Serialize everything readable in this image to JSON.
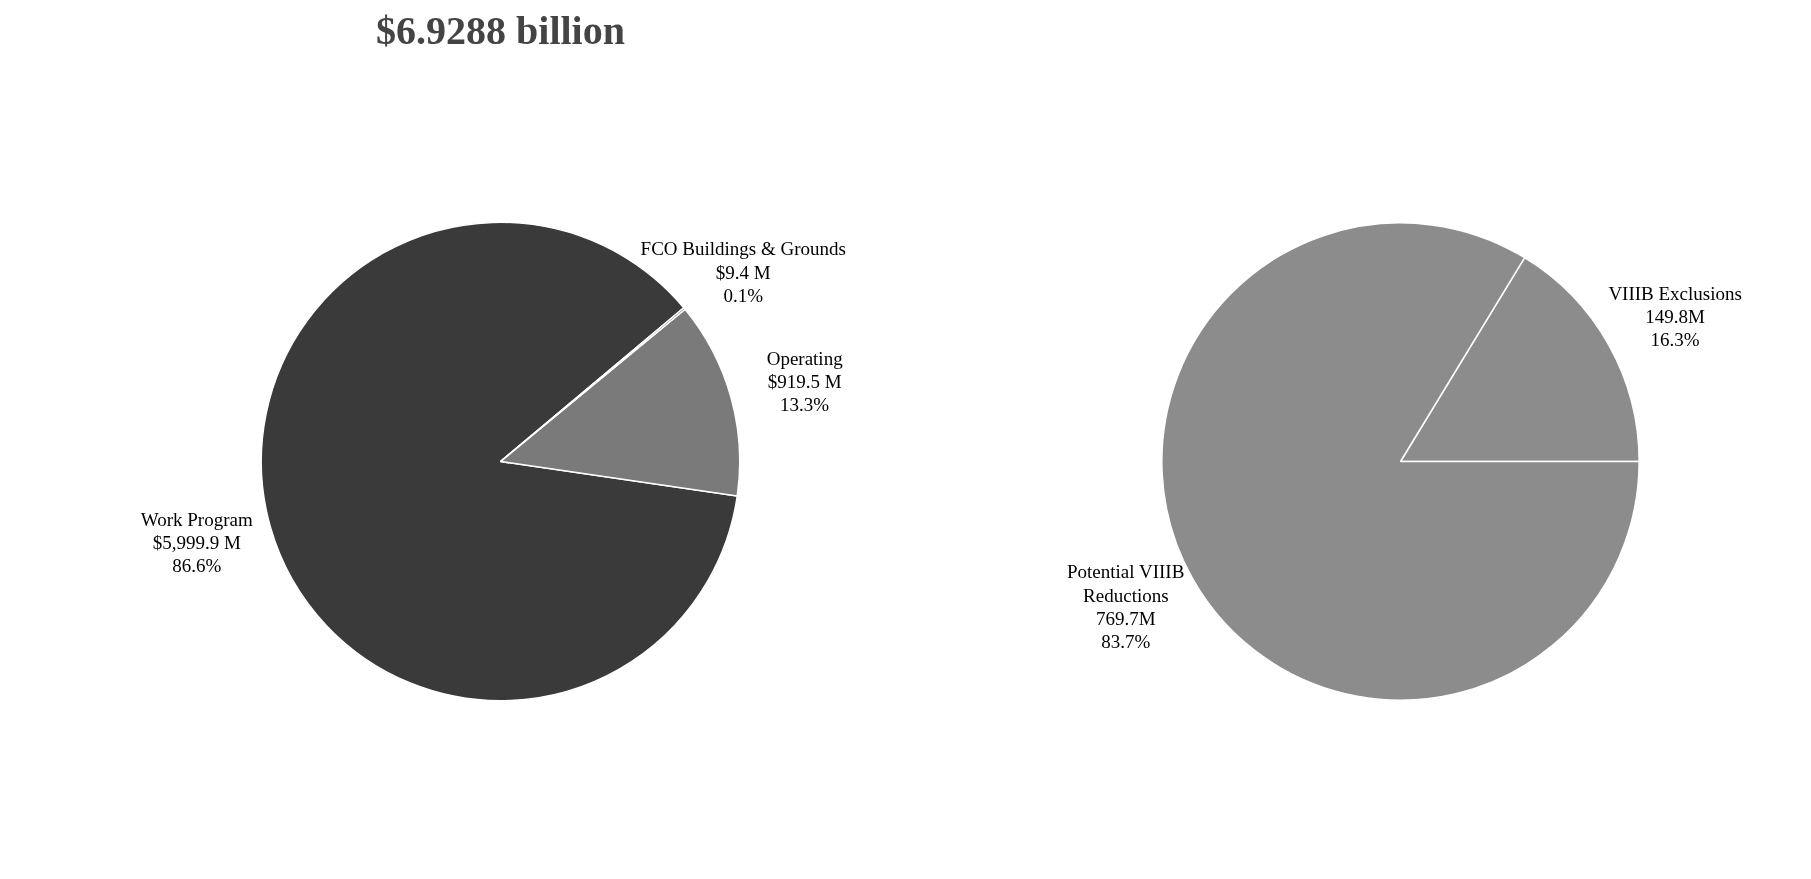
{
  "chart_data": [
    {
      "type": "pie",
      "title": "$6.9288 billion",
      "categories": [
        "Work Program",
        "Operating",
        "FCO Buildings & Grounds"
      ],
      "values": [
        5999.9,
        919.5,
        9.4
      ],
      "value_labels": [
        "$5,999.9 M\n86.6%",
        "$919.5 M\n13.3%",
        "$9.4 M\n0.1%"
      ],
      "colors": [
        "#3a3a3a",
        "#7a7a7a",
        "#7a7a7a"
      ]
    },
    {
      "type": "pie",
      "categories": [
        "VIIIB Exclusions",
        "Potential VIIIB\nReductions"
      ],
      "values": [
        149.8,
        769.7
      ],
      "value_labels": [
        "149.8M",
        "769.7M"
      ],
      "annotations": [
        "16.3%",
        "83.7%"
      ],
      "colors": [
        "#8c8c8c",
        "#8c8c8c"
      ]
    }
  ]
}
